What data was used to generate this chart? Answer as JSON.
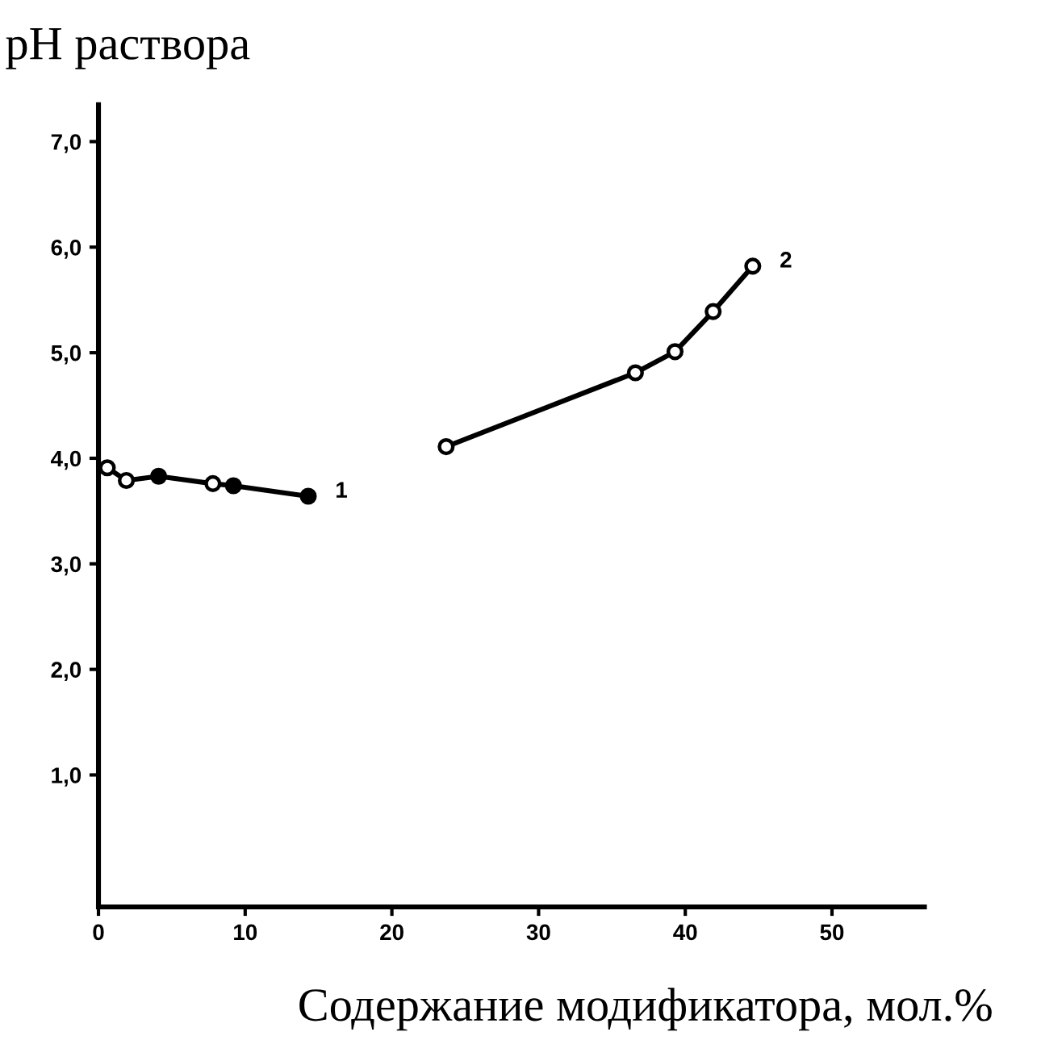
{
  "chart_data": {
    "type": "line",
    "ylabel": "pH раствора",
    "xlabel": "Содержание модификатора, мол.%",
    "xlim": [
      0,
      56.3
    ],
    "ylim": [
      -0.25,
      7.35
    ],
    "xticks": [
      0,
      10,
      20,
      30,
      40,
      50
    ],
    "yticks": [
      {
        "value": 1,
        "label": "1,0"
      },
      {
        "value": 2,
        "label": "2,0"
      },
      {
        "value": 3,
        "label": "3,0"
      },
      {
        "value": 4,
        "label": "4,0"
      },
      {
        "value": 5,
        "label": "5,0"
      },
      {
        "value": 6,
        "label": "6,0"
      },
      {
        "value": 7,
        "label": "7,0"
      }
    ],
    "grid": false,
    "legend": false,
    "marker": "circle",
    "line_style": "solid",
    "series": [
      {
        "name": "1",
        "color": "#000000",
        "x": [
          0.6,
          1.9,
          4.1,
          7.8,
          9.2,
          14.3
        ],
        "values": [
          3.91,
          3.79,
          3.83,
          3.76,
          3.74,
          3.64
        ],
        "colors": [
          "#ffffff",
          "#ffffff",
          "#000000",
          "#ffffff",
          "#000000",
          "#000000"
        ]
      },
      {
        "name": "2",
        "color": "#000000",
        "x": [
          23.7,
          36.6,
          39.3,
          41.9,
          44.6
        ],
        "values": [
          4.11,
          4.81,
          5.01,
          5.39,
          5.82
        ],
        "colors": [
          "#ffffff",
          "#ffffff",
          "#ffffff",
          "#ffffff",
          "#ffffff"
        ]
      }
    ]
  }
}
